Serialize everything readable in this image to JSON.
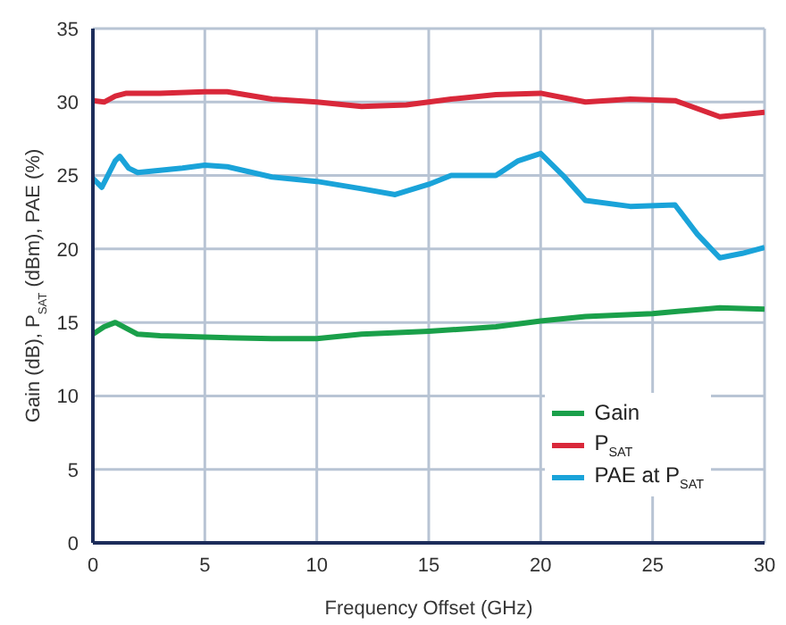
{
  "chart_data": {
    "type": "line",
    "xlabel": "Frequency Offset (GHz)",
    "ylabel": "Gain (dB), P$_{SAT}$ (dBm), PAE (%)",
    "xlim": [
      0,
      30
    ],
    "xticks": [
      0,
      5,
      10,
      15,
      20,
      25,
      30
    ],
    "ylim": [
      0,
      35
    ],
    "yticks": [
      0,
      5,
      10,
      15,
      20,
      25,
      30,
      35
    ],
    "grid": true,
    "legend": "bottom right",
    "marker": "none",
    "line_style": "solid",
    "series": [
      {
        "name": "Gain",
        "color": "#1aa04a",
        "x": [
          0,
          0.5,
          1,
          2,
          3,
          5,
          8,
          10,
          12,
          15,
          18,
          20,
          22,
          25,
          28,
          30
        ],
        "values": [
          14.2,
          14.7,
          15.0,
          14.2,
          14.1,
          14.0,
          13.9,
          13.9,
          14.2,
          14.4,
          14.7,
          15.1,
          15.4,
          15.6,
          16.0,
          15.9
        ]
      },
      {
        "name": "P$_{SAT}$",
        "color": "#d9283a",
        "x": [
          0,
          0.5,
          1,
          1.5,
          3,
          5,
          6,
          8,
          10,
          12,
          14,
          16,
          18,
          20,
          22,
          24,
          26,
          28,
          30
        ],
        "values": [
          30.1,
          30.0,
          30.4,
          30.6,
          30.6,
          30.7,
          30.7,
          30.2,
          30.0,
          29.7,
          29.8,
          30.2,
          30.5,
          30.6,
          30.0,
          30.2,
          30.1,
          29.0,
          29.3
        ]
      },
      {
        "name": "PAE at P$_{SAT}$",
        "color": "#1aa3d9",
        "x": [
          0,
          0.4,
          1,
          1.2,
          1.6,
          2,
          4,
          5,
          6,
          8,
          10,
          12,
          13.5,
          15,
          16,
          18,
          19,
          20,
          21,
          22,
          24,
          26,
          27,
          28,
          29,
          30
        ],
        "values": [
          24.8,
          24.2,
          26.0,
          26.3,
          25.5,
          25.2,
          25.5,
          25.7,
          25.6,
          24.9,
          24.6,
          24.1,
          23.7,
          24.4,
          25.0,
          25.0,
          26.0,
          26.5,
          25.0,
          23.3,
          22.9,
          23.0,
          21.0,
          19.4,
          19.7,
          20.1
        ]
      }
    ]
  }
}
